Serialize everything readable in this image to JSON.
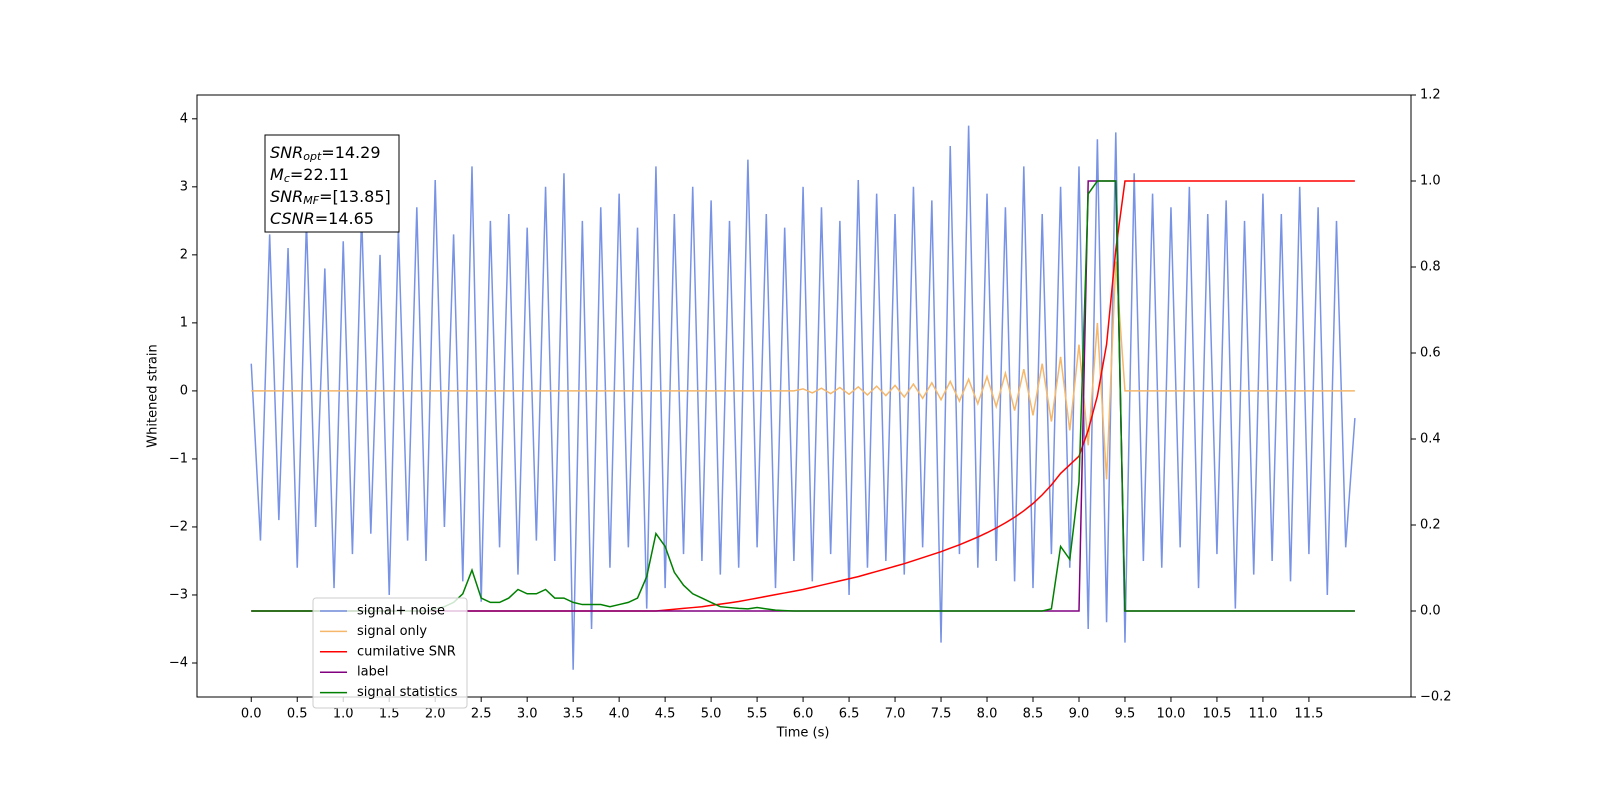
{
  "chart_data": {
    "type": "line",
    "xlabel": "Time (s)",
    "ylabel": "Whitened strain",
    "annotation": [
      {
        "main": "SNR",
        "sub": "opt",
        "text": "=14.29"
      },
      {
        "main": "M",
        "sub": "c",
        "text": "=22.11"
      },
      {
        "main": "SNR",
        "sub": "MF",
        "text": "=[13.85]"
      },
      {
        "main": "CSNR",
        "text": "=14.65"
      }
    ],
    "legend": "lower left",
    "xlim": [
      -0.59,
      12.61
    ],
    "ylim": [
      -4.5,
      4.35
    ],
    "y2lim": [
      -0.2,
      1.2
    ],
    "xticks": [
      {
        "value": 0,
        "label": "0.0"
      },
      0.5,
      {
        "value": 1,
        "label": "1.0"
      },
      1.5,
      {
        "value": 2,
        "label": "2.0"
      },
      2.5,
      {
        "value": 3,
        "label": "3.0"
      },
      3.5,
      {
        "value": 4,
        "label": "4.0"
      },
      4.5,
      {
        "value": 5,
        "label": "5.0"
      },
      5.5,
      {
        "value": 6,
        "label": "6.0"
      },
      6.5,
      {
        "value": 7,
        "label": "7.0"
      },
      7.5,
      {
        "value": 8,
        "label": "8.0"
      },
      8.5,
      {
        "value": 9,
        "label": "9.0"
      },
      9.5,
      {
        "value": 10,
        "label": "10.0"
      },
      10.5,
      {
        "value": 11,
        "label": "11.0"
      },
      11.5
    ],
    "yticks": [
      {
        "value": -4,
        "label": "−4"
      },
      {
        "value": -3,
        "label": "−3"
      },
      {
        "value": -2,
        "label": "−2"
      },
      {
        "value": -1,
        "label": "−1"
      },
      0,
      1,
      2,
      3,
      4
    ],
    "y2ticks": [
      {
        "value": -0.2,
        "label": "−0.2"
      },
      {
        "value": 0,
        "label": "0.0"
      },
      0.2,
      0.4,
      0.6,
      0.8,
      {
        "value": 1,
        "label": "1.0"
      },
      1.2
    ],
    "x": [
      0.0,
      0.1,
      0.2,
      0.3,
      0.4,
      0.5,
      0.6,
      0.7,
      0.8,
      0.9,
      1.0,
      1.1,
      1.2,
      1.3,
      1.4,
      1.5,
      1.6,
      1.7,
      1.8,
      1.9,
      2.0,
      2.1,
      2.2,
      2.3,
      2.4,
      2.5,
      2.6,
      2.7,
      2.8,
      2.9,
      3.0,
      3.1,
      3.2,
      3.3,
      3.4,
      3.5,
      3.6,
      3.7,
      3.8,
      3.9,
      4.0,
      4.1,
      4.2,
      4.3,
      4.4,
      4.5,
      4.6,
      4.7,
      4.8,
      4.9,
      5.0,
      5.1,
      5.2,
      5.3,
      5.4,
      5.5,
      5.6,
      5.7,
      5.8,
      5.9,
      6.0,
      6.1,
      6.2,
      6.3,
      6.4,
      6.5,
      6.6,
      6.7,
      6.8,
      6.9,
      7.0,
      7.1,
      7.2,
      7.3,
      7.4,
      7.5,
      7.6,
      7.7,
      7.8,
      7.9,
      8.0,
      8.1,
      8.2,
      8.3,
      8.4,
      8.5,
      8.6,
      8.7,
      8.8,
      8.9,
      9.0,
      9.1,
      9.2,
      9.3,
      9.4,
      9.5,
      9.6,
      9.7,
      9.8,
      9.9,
      10.0,
      10.1,
      10.2,
      10.3,
      10.4,
      10.5,
      10.6,
      10.7,
      10.8,
      10.9,
      11.0,
      11.1,
      11.2,
      11.3,
      11.4,
      11.5,
      11.6,
      11.7,
      11.8,
      11.9,
      12.0
    ],
    "series": [
      {
        "name": "signal+ noise",
        "color": "#7893e6",
        "values": [
          0.4,
          -2.2,
          2.3,
          -1.9,
          2.1,
          -2.6,
          2.5,
          -2.0,
          1.8,
          -2.9,
          2.2,
          -2.4,
          2.6,
          -2.1,
          2.0,
          -3.0,
          2.4,
          -2.2,
          2.7,
          -2.5,
          3.1,
          -2.0,
          2.3,
          -2.8,
          3.3,
          -3.1,
          2.5,
          -2.3,
          2.6,
          -2.7,
          2.4,
          -2.2,
          3.0,
          -2.5,
          3.2,
          -4.1,
          2.5,
          -3.5,
          2.7,
          -2.6,
          2.9,
          -2.3,
          2.4,
          -3.2,
          3.3,
          -2.9,
          2.6,
          -2.4,
          3.0,
          -2.5,
          2.8,
          -2.7,
          2.5,
          -2.6,
          3.4,
          -2.3,
          2.6,
          -2.9,
          2.4,
          -2.5,
          3.0,
          -2.8,
          2.7,
          -2.4,
          2.5,
          -3.0,
          3.1,
          -2.6,
          2.9,
          -2.5,
          2.6,
          -2.7,
          3.0,
          -2.3,
          2.8,
          -3.7,
          3.6,
          -2.4,
          3.9,
          -2.6,
          2.9,
          -2.5,
          2.7,
          -2.8,
          3.3,
          -2.9,
          2.6,
          -2.4,
          3.0,
          -2.6,
          3.3,
          -3.5,
          3.7,
          -3.4,
          3.8,
          -3.7,
          3.2,
          -2.5,
          2.9,
          -2.6,
          2.7,
          -2.3,
          3.0,
          -2.9,
          2.6,
          -2.4,
          2.8,
          -3.2,
          2.5,
          -2.7,
          2.9,
          -2.5,
          2.6,
          -2.8,
          3.0,
          -2.4,
          2.7,
          -3.0,
          2.5,
          -2.3,
          -0.4
        ]
      },
      {
        "name": "signal only",
        "color": "#f5b76a",
        "values": [
          0,
          0,
          0,
          0,
          0,
          0,
          0,
          0,
          0,
          0,
          0,
          0,
          0,
          0,
          0,
          0,
          0,
          0,
          0,
          0,
          0,
          0,
          0,
          0,
          0,
          0,
          0,
          0,
          0,
          0,
          0,
          0,
          0,
          0,
          0,
          0,
          0,
          0,
          0,
          0,
          0,
          0,
          0,
          0,
          0,
          0,
          0,
          0,
          0,
          0,
          0,
          0,
          0,
          0,
          0,
          0,
          0,
          0,
          0,
          0,
          0.03,
          -0.03,
          0.04,
          -0.04,
          0.05,
          -0.05,
          0.06,
          -0.06,
          0.07,
          -0.07,
          0.08,
          -0.09,
          0.1,
          -0.11,
          0.12,
          -0.13,
          0.14,
          -0.15,
          0.17,
          -0.19,
          0.21,
          -0.23,
          0.26,
          -0.29,
          0.32,
          -0.36,
          0.4,
          -0.45,
          0.5,
          -0.58,
          0.68,
          -0.8,
          1.0,
          -1.3,
          1.9,
          0,
          0,
          0,
          0,
          0,
          0,
          0,
          0,
          0,
          0,
          0,
          0,
          0,
          0,
          0,
          0,
          0,
          0,
          0,
          0,
          0,
          0,
          0,
          0,
          0,
          0
        ]
      },
      {
        "name": "cumilative SNR",
        "color": "#ff0000",
        "axis": "y2",
        "values": [
          0,
          0,
          0,
          0,
          0,
          0,
          0,
          0,
          0,
          0,
          0,
          0,
          0,
          0,
          0,
          0,
          0,
          0,
          0,
          0,
          0,
          0,
          0,
          0,
          0,
          0,
          0,
          0,
          0,
          0,
          0,
          0,
          0,
          0,
          0,
          0,
          0,
          0,
          0,
          0,
          0,
          0,
          0,
          0,
          0,
          0.002,
          0.004,
          0.006,
          0.008,
          0.01,
          0.013,
          0.016,
          0.019,
          0.022,
          0.026,
          0.03,
          0.034,
          0.038,
          0.042,
          0.046,
          0.05,
          0.055,
          0.06,
          0.065,
          0.07,
          0.075,
          0.08,
          0.086,
          0.092,
          0.098,
          0.104,
          0.11,
          0.117,
          0.124,
          0.131,
          0.138,
          0.146,
          0.154,
          0.163,
          0.172,
          0.182,
          0.193,
          0.205,
          0.218,
          0.233,
          0.25,
          0.27,
          0.293,
          0.32,
          0.34,
          0.36,
          0.42,
          0.5,
          0.62,
          0.84,
          1,
          1,
          1,
          1,
          1,
          1,
          1,
          1,
          1,
          1,
          1,
          1,
          1,
          1,
          1,
          1,
          1,
          1,
          1,
          1,
          1,
          1,
          1,
          1,
          1,
          1
        ]
      },
      {
        "name": "label",
        "color": "#800080",
        "axis": "y2",
        "values": [
          0,
          0,
          0,
          0,
          0,
          0,
          0,
          0,
          0,
          0,
          0,
          0,
          0,
          0,
          0,
          0,
          0,
          0,
          0,
          0,
          0,
          0,
          0,
          0,
          0,
          0,
          0,
          0,
          0,
          0,
          0,
          0,
          0,
          0,
          0,
          0,
          0,
          0,
          0,
          0,
          0,
          0,
          0,
          0,
          0,
          0,
          0,
          0,
          0,
          0,
          0,
          0,
          0,
          0,
          0,
          0,
          0,
          0,
          0,
          0,
          0,
          0,
          0,
          0,
          0,
          0,
          0,
          0,
          0,
          0,
          0,
          0,
          0,
          0,
          0,
          0,
          0,
          0,
          0,
          0,
          0,
          0,
          0,
          0,
          0,
          0,
          0,
          0,
          0,
          0,
          0,
          1,
          1,
          1,
          1,
          0,
          0,
          0,
          0,
          0,
          0,
          0,
          0,
          0,
          0,
          0,
          0,
          0,
          0,
          0,
          0,
          0,
          0,
          0,
          0,
          0,
          0,
          0,
          0,
          0,
          0
        ]
      },
      {
        "name": "signal statistics",
        "color": "#008000",
        "axis": "y2",
        "values": [
          0,
          0,
          0,
          0,
          0,
          0,
          0,
          0,
          0,
          0,
          0,
          0,
          0,
          0,
          0,
          0,
          0,
          0,
          0,
          0,
          0.005,
          0.01,
          0.02,
          0.04,
          0.095,
          0.03,
          0.02,
          0.02,
          0.03,
          0.05,
          0.04,
          0.04,
          0.05,
          0.03,
          0.03,
          0.02,
          0.015,
          0.015,
          0.015,
          0.01,
          0.015,
          0.02,
          0.03,
          0.08,
          0.18,
          0.15,
          0.09,
          0.06,
          0.04,
          0.03,
          0.02,
          0.01,
          0.008,
          0.006,
          0.005,
          0.008,
          0.005,
          0.002,
          0.001,
          0,
          0,
          0,
          0,
          0,
          0,
          0,
          0,
          0,
          0,
          0,
          0,
          0,
          0,
          0,
          0,
          0,
          0,
          0,
          0,
          0,
          0,
          0,
          0,
          0,
          0,
          0,
          0,
          0.005,
          0.15,
          0.12,
          0.3,
          0.97,
          1,
          1,
          1,
          0,
          0,
          0,
          0,
          0,
          0,
          0,
          0,
          0,
          0,
          0,
          0,
          0,
          0,
          0,
          0,
          0,
          0,
          0,
          0,
          0,
          0,
          0,
          0,
          0,
          0
        ]
      }
    ]
  }
}
